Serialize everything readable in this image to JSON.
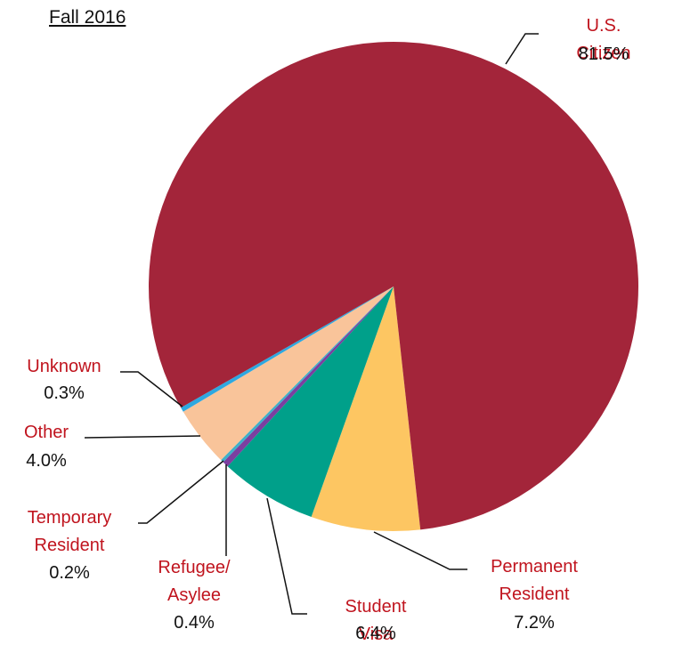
{
  "chart_data": {
    "type": "pie",
    "title": "Fall 2016",
    "categories": [
      "Permanent Resident",
      "Student Visa",
      "Refugee/Asylee",
      "Temporary Resident",
      "Other",
      "Unknown",
      "U.S. Citizen"
    ],
    "values": [
      7.2,
      6.4,
      0.4,
      0.2,
      4.0,
      0.3,
      81.5
    ],
    "value_labels": [
      "7.2%",
      "6.4%",
      "0.4%",
      "0.2%",
      "4.0%",
      "0.3%",
      "81.5%"
    ],
    "colors": [
      "#fdc662",
      "#00a08a",
      "#7b3fa0",
      "#3fb0c9",
      "#f9c49a",
      "#2ea8e0",
      "#a3253a"
    ]
  }
}
